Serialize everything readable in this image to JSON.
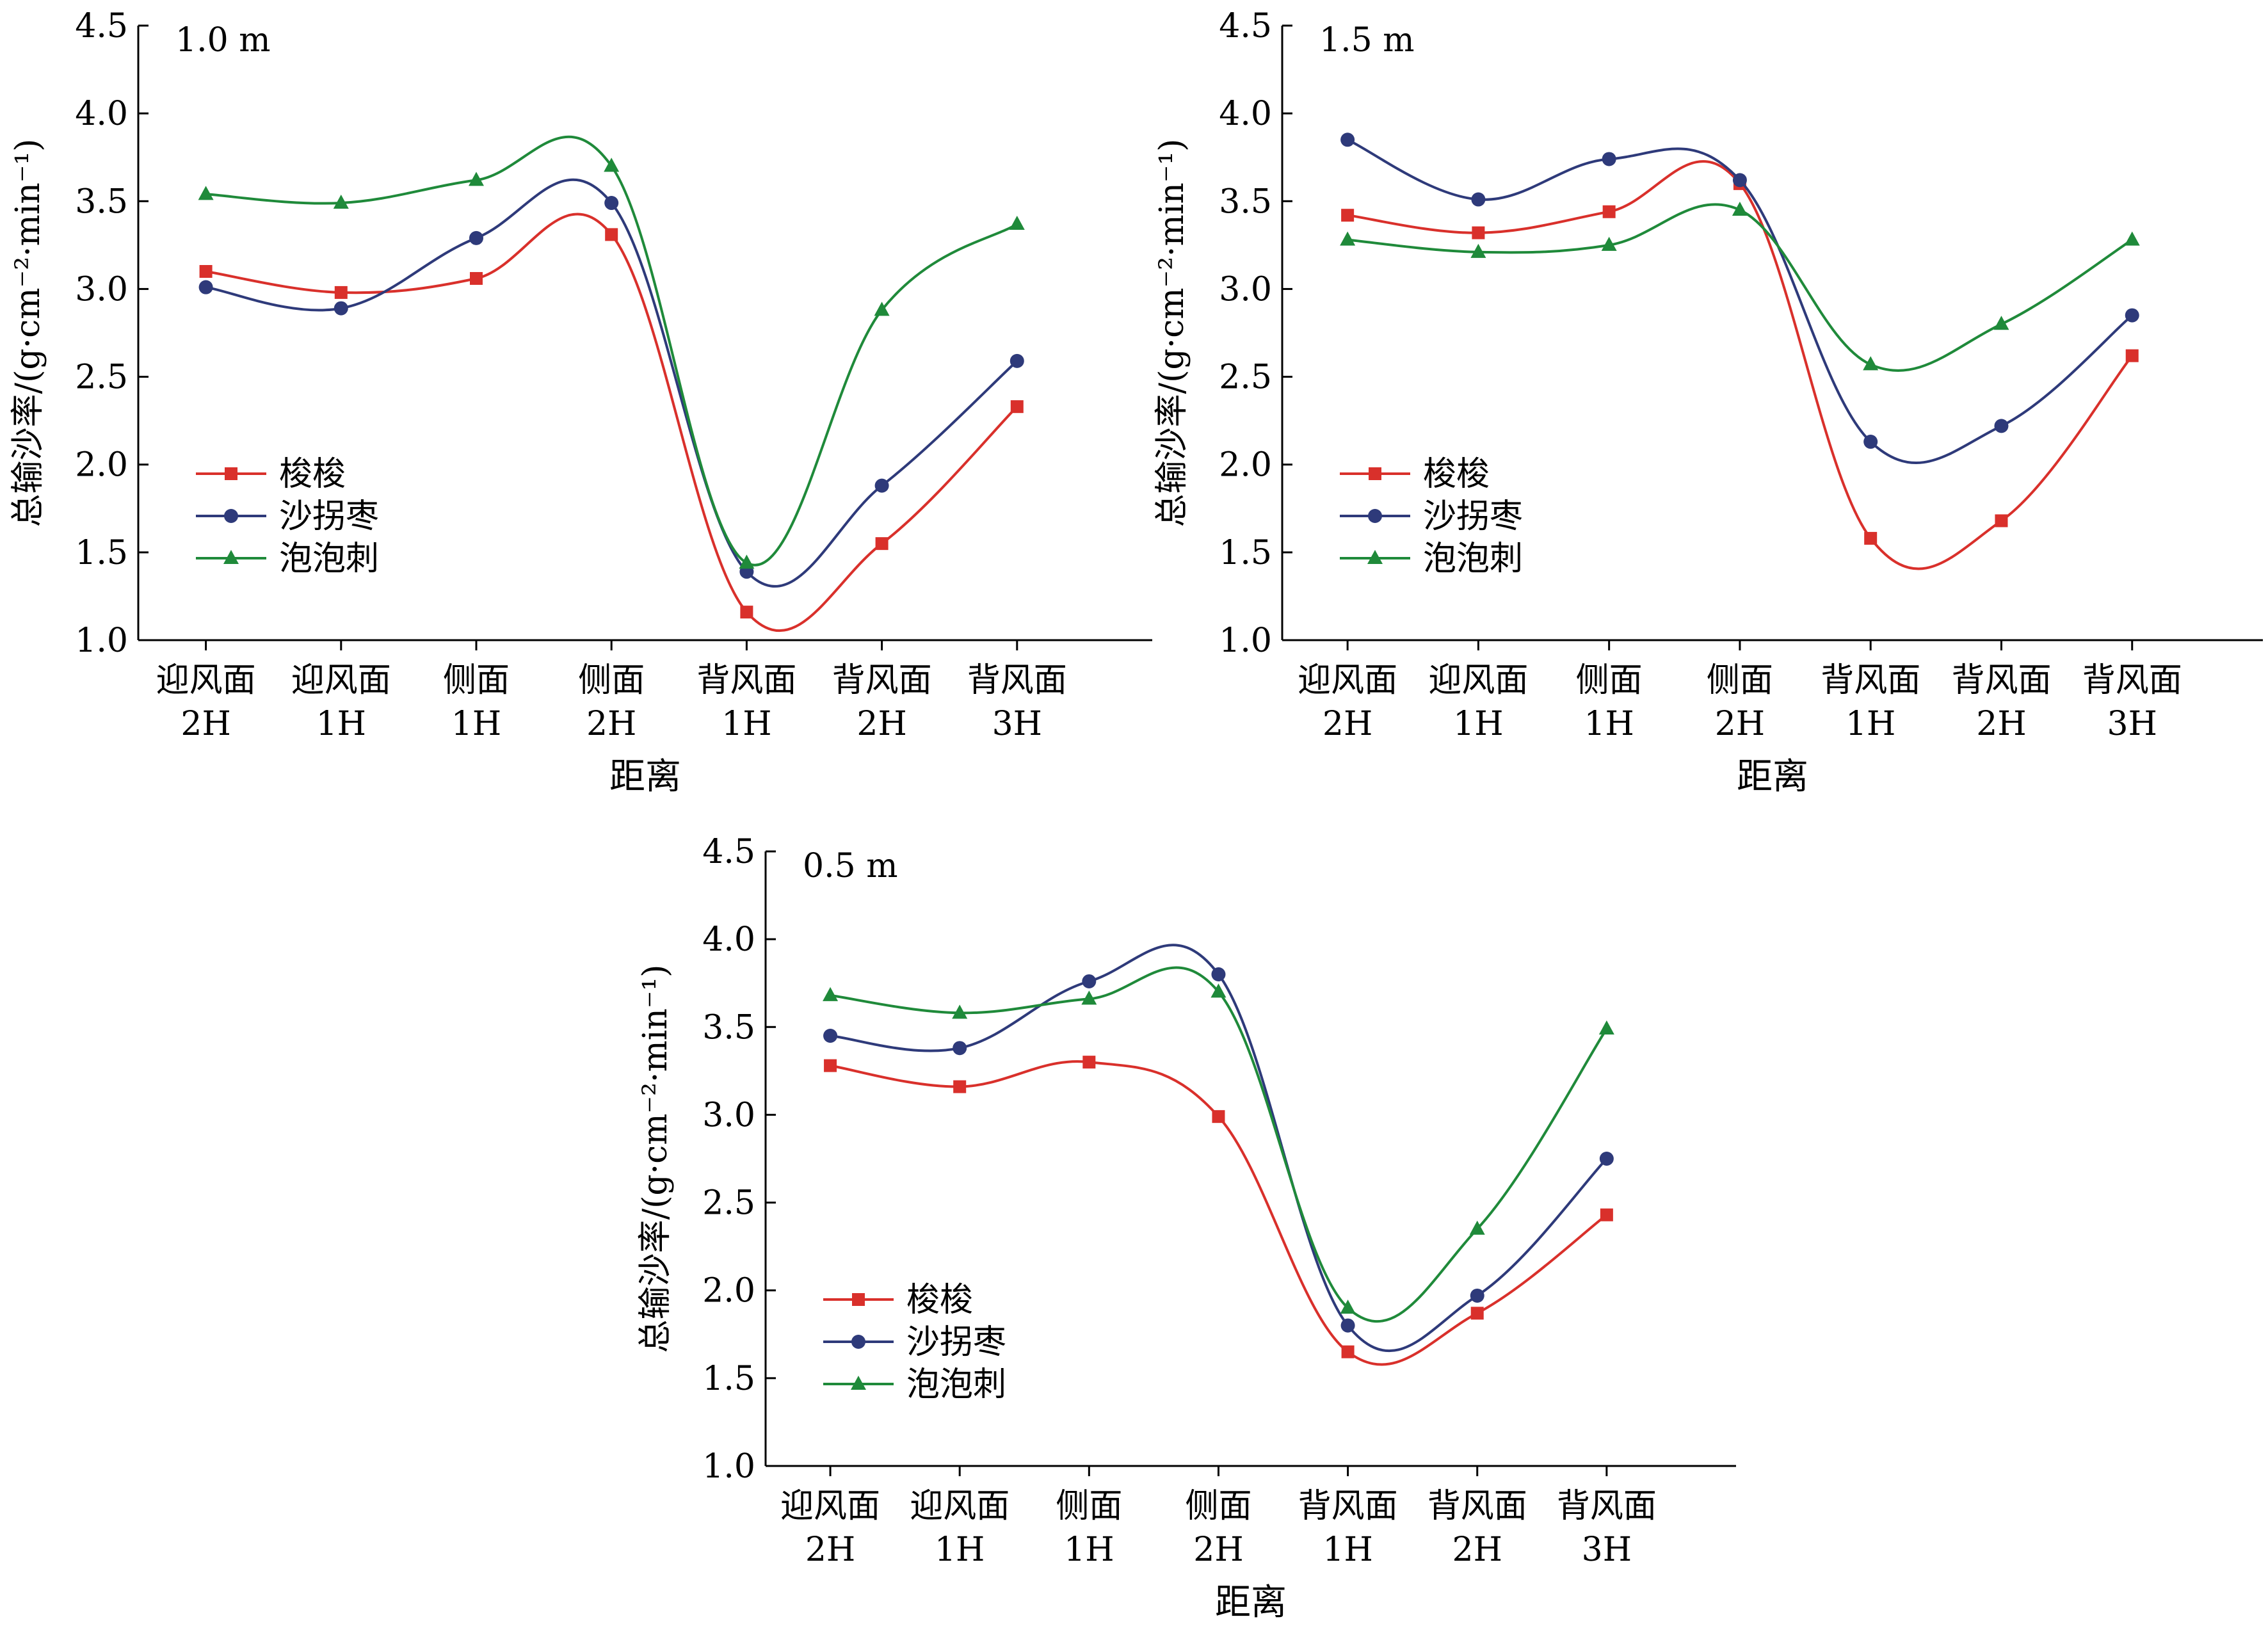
{
  "chart_data": [
    {
      "type": "line",
      "panel_label": "1.0 m",
      "ylabel": "总输沙率/(g·cm⁻²·min⁻¹)",
      "xlabel": "距离",
      "ylim": [
        1.0,
        4.5
      ],
      "yticks": [
        "1.0",
        "1.5",
        "2.0",
        "2.5",
        "3.0",
        "3.5",
        "4.0",
        "4.5"
      ],
      "categories": [
        [
          "迎风面",
          "2H"
        ],
        [
          "迎风面",
          "1H"
        ],
        [
          "侧面",
          "1H"
        ],
        [
          "侧面",
          "2H"
        ],
        [
          "背风面",
          "1H"
        ],
        [
          "背风面",
          "2H"
        ],
        [
          "背风面",
          "3H"
        ]
      ],
      "legend_position": "lower-left",
      "series": [
        {
          "name": "梭梭",
          "color": "#d9302b",
          "marker": "square",
          "values": [
            3.1,
            2.98,
            3.06,
            3.31,
            1.16,
            1.55,
            2.33
          ]
        },
        {
          "name": "沙拐枣",
          "color": "#2e3a7a",
          "marker": "circle",
          "values": [
            3.01,
            2.89,
            3.29,
            3.49,
            1.39,
            1.88,
            2.59
          ]
        },
        {
          "name": "泡泡刺",
          "color": "#1f8a3a",
          "marker": "triangle",
          "values": [
            3.54,
            3.49,
            3.62,
            3.7,
            1.44,
            2.88,
            3.37
          ]
        }
      ]
    },
    {
      "type": "line",
      "panel_label": "1.5 m",
      "ylabel": "总输沙率/(g·cm⁻²·min⁻¹)",
      "xlabel": "距离",
      "ylim": [
        1.0,
        4.5
      ],
      "yticks": [
        "1.0",
        "1.5",
        "2.0",
        "2.5",
        "3.0",
        "3.5",
        "4.0",
        "4.5"
      ],
      "categories": [
        [
          "迎风面",
          "2H"
        ],
        [
          "迎风面",
          "1H"
        ],
        [
          "侧面",
          "1H"
        ],
        [
          "侧面",
          "2H"
        ],
        [
          "背风面",
          "1H"
        ],
        [
          "背风面",
          "2H"
        ],
        [
          "背风面",
          "3H"
        ]
      ],
      "legend_position": "lower-left",
      "series": [
        {
          "name": "梭梭",
          "color": "#d9302b",
          "marker": "square",
          "values": [
            3.42,
            3.32,
            3.44,
            3.6,
            1.58,
            1.68,
            2.62
          ]
        },
        {
          "name": "沙拐枣",
          "color": "#2e3a7a",
          "marker": "circle",
          "values": [
            3.85,
            3.51,
            3.74,
            3.62,
            2.13,
            2.22,
            2.85
          ]
        },
        {
          "name": "泡泡刺",
          "color": "#1f8a3a",
          "marker": "triangle",
          "values": [
            3.28,
            3.21,
            3.25,
            3.45,
            2.57,
            2.8,
            3.28
          ]
        }
      ]
    },
    {
      "type": "line",
      "panel_label": "0.5 m",
      "ylabel": "总输沙率/(g·cm⁻²·min⁻¹)",
      "xlabel": "距离",
      "ylim": [
        1.0,
        4.5
      ],
      "yticks": [
        "1.0",
        "1.5",
        "2.0",
        "2.5",
        "3.0",
        "3.5",
        "4.0",
        "4.5"
      ],
      "categories": [
        [
          "迎风面",
          "2H"
        ],
        [
          "迎风面",
          "1H"
        ],
        [
          "侧面",
          "1H"
        ],
        [
          "侧面",
          "2H"
        ],
        [
          "背风面",
          "1H"
        ],
        [
          "背风面",
          "2H"
        ],
        [
          "背风面",
          "3H"
        ]
      ],
      "legend_position": "lower-left",
      "series": [
        {
          "name": "梭梭",
          "color": "#d9302b",
          "marker": "square",
          "values": [
            3.28,
            3.16,
            3.3,
            2.99,
            1.65,
            1.87,
            2.43
          ]
        },
        {
          "name": "沙拐枣",
          "color": "#2e3a7a",
          "marker": "circle",
          "values": [
            3.45,
            3.38,
            3.76,
            3.8,
            1.8,
            1.97,
            2.75
          ]
        },
        {
          "name": "泡泡刺",
          "color": "#1f8a3a",
          "marker": "triangle",
          "values": [
            3.68,
            3.58,
            3.66,
            3.7,
            1.9,
            2.35,
            3.49
          ]
        }
      ]
    }
  ]
}
